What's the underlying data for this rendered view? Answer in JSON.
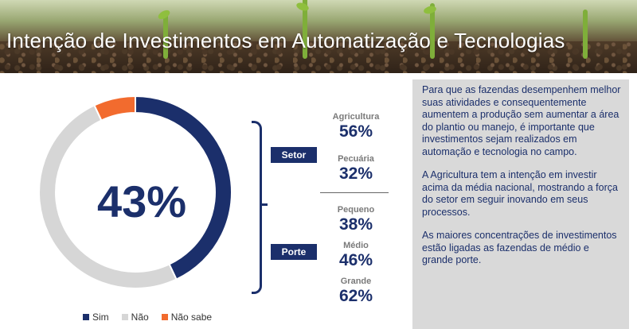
{
  "header": {
    "title": "Intenção de Investimentos em Automatização e Tecnologias"
  },
  "chart_data": {
    "type": "pie",
    "donut": true,
    "center_label": "43%",
    "labels": [
      "Sim",
      "Não",
      "Não sabe"
    ],
    "values": [
      43,
      50,
      7
    ],
    "colors": [
      "#1b2f6b",
      "#d6d6d6",
      "#f26b2e"
    ],
    "legend_position": "bottom"
  },
  "breakdown": {
    "setor": {
      "label": "Setor",
      "items": [
        {
          "name": "Agricultura",
          "value": "56%"
        },
        {
          "name": "Pecuária",
          "value": "32%"
        }
      ]
    },
    "porte": {
      "label": "Porte",
      "items": [
        {
          "name": "Pequeno",
          "value": "38%"
        },
        {
          "name": "Médio",
          "value": "46%"
        },
        {
          "name": "Grande",
          "value": "62%"
        }
      ]
    }
  },
  "info": {
    "paragraphs": [
      "Para que as fazendas desempenhem melhor suas atividades e consequentemente aumentem a produção sem aumentar a área do plantio ou manejo, é importante que investimentos sejam realizados em automação e tecnologia no campo.",
      "A Agricultura tem a intenção em investir acima da média nacional, mostrando a força do setor em seguir inovando em seus processos.",
      "As maiores concentrações de investimentos estão ligadas as fazendas de médio e grande porte."
    ]
  }
}
